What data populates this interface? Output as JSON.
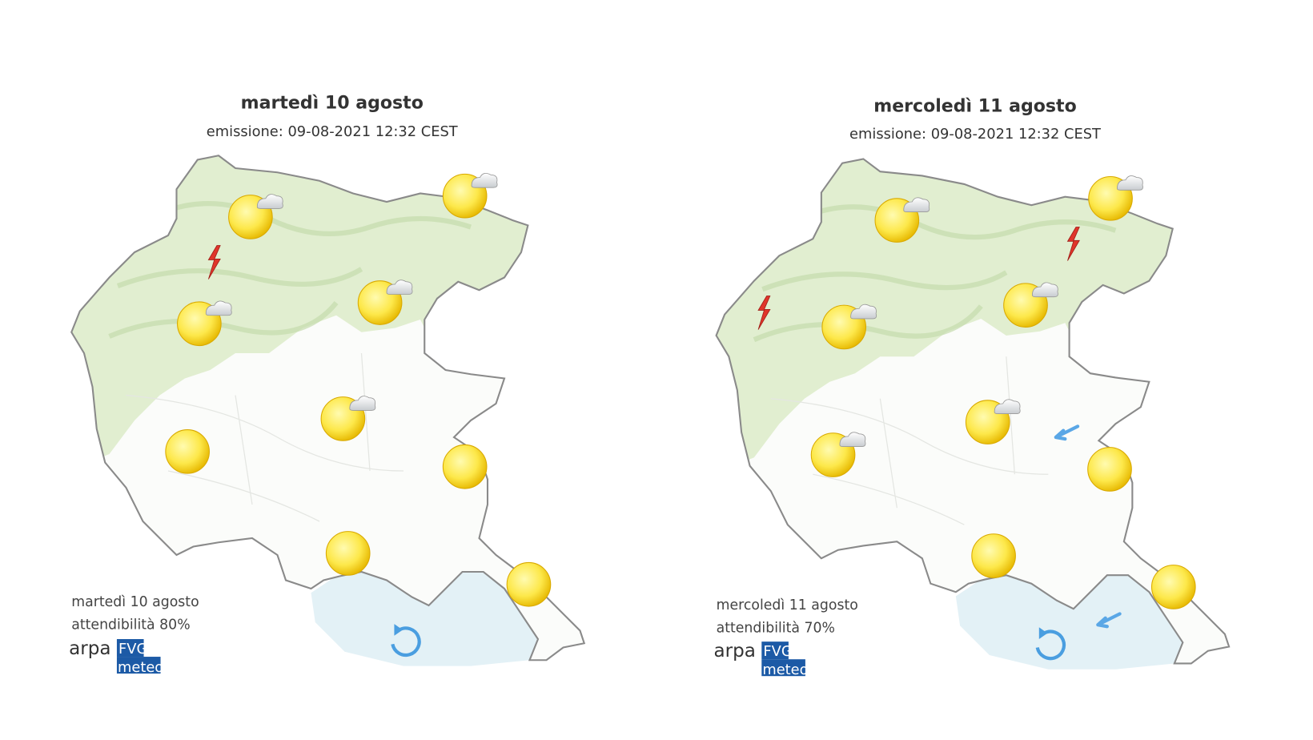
{
  "panels": [
    {
      "title": "martedì 10 agosto",
      "emission": "emissione: 09-08-2021 12:32 CEST",
      "footer_date": "martedì 10 agosto",
      "reliability": "attendibilità 80%",
      "logo": {
        "arpa": "arpa",
        "fvg": "FVG",
        "meteo": "meteo"
      }
    },
    {
      "title": "mercoledì 11 agosto",
      "emission": "emissione: 09-08-2021 12:32 CEST",
      "footer_date": "mercoledì 11 agosto",
      "reliability": "attendibilità 70%",
      "logo": {
        "arpa": "arpa",
        "fvg": "FVG",
        "meteo": "meteo"
      }
    }
  ]
}
